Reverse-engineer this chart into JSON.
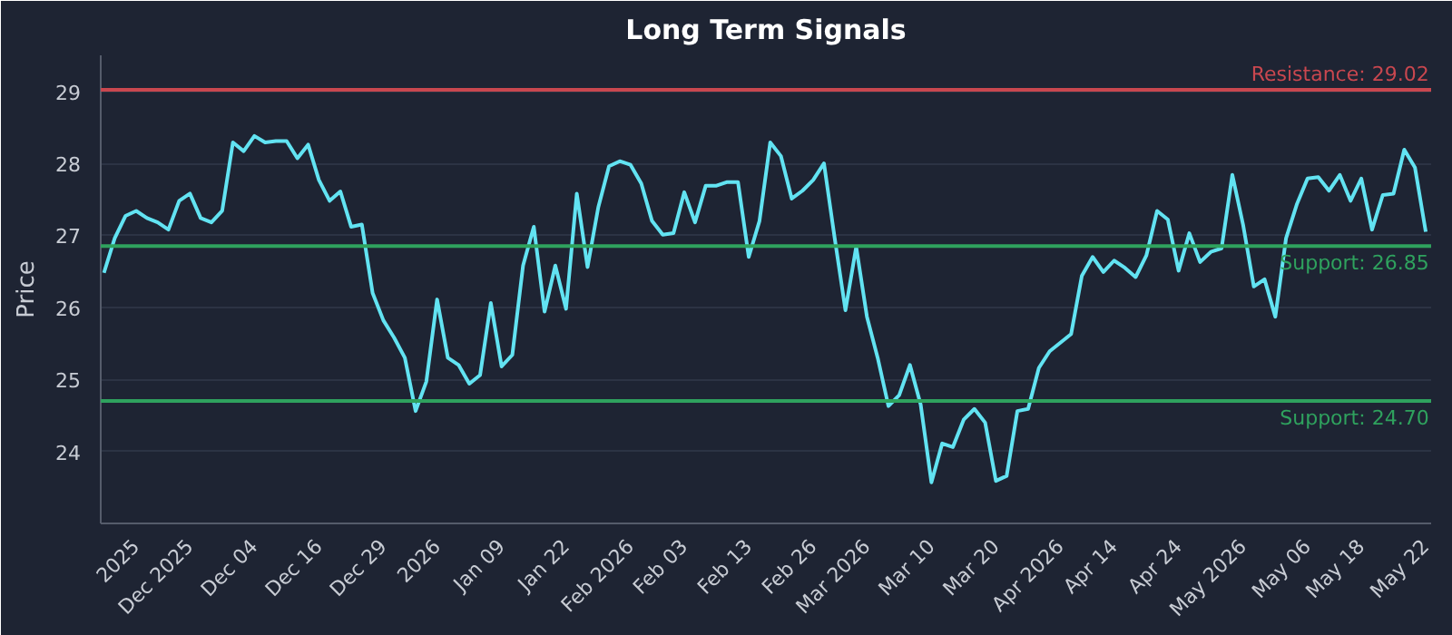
{
  "chart_data": {
    "type": "line",
    "title": "Long Term Signals",
    "ylabel": "Price",
    "categories": [
      null,
      null,
      null,
      "2025",
      null,
      null,
      null,
      null,
      "Dec 2025",
      null,
      null,
      null,
      null,
      null,
      "Dec 04",
      null,
      null,
      null,
      null,
      null,
      "Dec 16",
      null,
      null,
      null,
      null,
      null,
      "Dec 29",
      null,
      null,
      null,
      null,
      "2026",
      null,
      null,
      null,
      null,
      null,
      "Jan 09",
      null,
      null,
      null,
      null,
      null,
      "Jan 22",
      null,
      null,
      null,
      null,
      null,
      "Feb 2026",
      null,
      null,
      null,
      null,
      "Feb 03",
      null,
      null,
      null,
      null,
      null,
      "Feb 13",
      null,
      null,
      null,
      null,
      null,
      "Feb 26",
      null,
      null,
      null,
      null,
      "Mar 2026",
      null,
      null,
      null,
      null,
      null,
      "Mar 10",
      null,
      null,
      null,
      null,
      null,
      "Mar 20",
      null,
      null,
      null,
      null,
      null,
      "Apr 2026",
      null,
      null,
      null,
      null,
      "Apr 14",
      null,
      null,
      null,
      null,
      null,
      "Apr 24",
      null,
      null,
      null,
      null,
      null,
      "May 2026",
      null,
      null,
      null,
      null,
      null,
      "May 06",
      null,
      null,
      null,
      null,
      "May 18",
      null,
      null,
      null,
      null,
      null,
      "May 22"
    ],
    "series": [
      {
        "color": "#62e3f2",
        "values": [
          26.48,
          26.96,
          27.27,
          27.34,
          27.24,
          27.18,
          27.08,
          27.48,
          27.58,
          27.24,
          27.18,
          27.34,
          28.29,
          28.17,
          28.38,
          28.29,
          28.31,
          28.31,
          28.07,
          28.26,
          27.77,
          27.48,
          27.61,
          27.12,
          27.15,
          26.2,
          25.82,
          25.58,
          25.3,
          24.56,
          24.97,
          26.11,
          25.3,
          25.2,
          24.94,
          25.06,
          26.06,
          25.18,
          25.34,
          26.58,
          27.12,
          25.94,
          26.58,
          25.98,
          27.58,
          26.56,
          27.39,
          27.96,
          28.03,
          27.98,
          27.72,
          27.2,
          27.01,
          27.03,
          27.6,
          27.18,
          27.69,
          27.69,
          27.74,
          27.74,
          26.7,
          27.2,
          28.29,
          28.1,
          27.51,
          27.62,
          27.77,
          28.0,
          26.96,
          25.96,
          26.84,
          25.87,
          25.3,
          24.63,
          24.78,
          25.2,
          24.65,
          23.57,
          24.11,
          24.06,
          24.44,
          24.59,
          24.4,
          23.59,
          23.66,
          24.56,
          24.59,
          25.16,
          25.39,
          25.51,
          25.63,
          26.44,
          26.7,
          26.49,
          26.65,
          26.55,
          26.42,
          26.72,
          27.34,
          27.22,
          26.51,
          27.03,
          26.63,
          26.77,
          26.82,
          27.84,
          27.15,
          26.29,
          26.39,
          25.87,
          26.96,
          27.43,
          27.79,
          27.81,
          27.62,
          27.84,
          27.48,
          27.79,
          27.08,
          27.56,
          27.58,
          28.19,
          27.94,
          27.05
        ]
      }
    ],
    "ylim": [
      23.0,
      29.5
    ],
    "yticks": [
      24,
      25,
      26,
      27,
      28,
      29
    ],
    "grid": "y",
    "marker": "none",
    "line_style": "solid",
    "ref_lines": [
      {
        "axis": "y",
        "value": 29.02,
        "label": "Resistance: 29.02",
        "color": "#c9474f"
      },
      {
        "axis": "y",
        "value": 26.85,
        "label": "Support: 26.85",
        "color": "#2fa25e"
      },
      {
        "axis": "y",
        "value": 24.7,
        "label": "Support: 24.70",
        "color": "#2fa25e"
      }
    ]
  }
}
